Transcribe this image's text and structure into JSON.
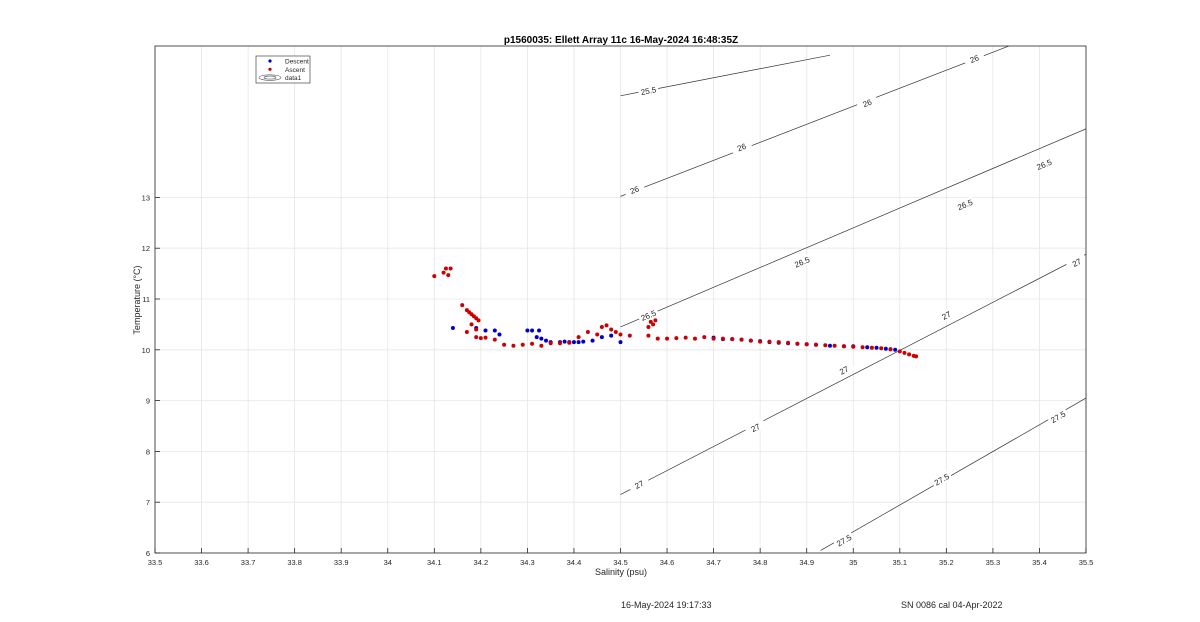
{
  "footer": {
    "timestamp": "16-May-2024 19:17:33",
    "calibration": "SN 0086 cal 04-Apr-2022"
  },
  "chart_data": {
    "type": "scatter",
    "title": "p1560035: Ellett Array 11c 16-May-2024 16:48:35Z",
    "xlabel": "Salinity (psu)",
    "ylabel": "Temperature (°C)",
    "xlim": [
      33.5,
      35.5
    ],
    "ylim": [
      6,
      16
    ],
    "xticks": [
      33.5,
      33.6,
      33.7,
      33.8,
      33.9,
      34,
      34.1,
      34.2,
      34.3,
      34.4,
      34.5,
      34.6,
      34.7,
      34.8,
      34.9,
      35,
      35.1,
      35.2,
      35.3,
      35.4,
      35.5
    ],
    "xtick_labels": [
      "33.5",
      "33.6",
      "33.7",
      "33.8",
      "33.9",
      "34",
      "34.1",
      "34.2",
      "34.3",
      "34.4",
      "34.5",
      "34.6",
      "34.7",
      "34.8",
      "34.9",
      "35",
      "35.1",
      "35.2",
      "35.3",
      "35.4",
      "35.5"
    ],
    "yticks": [
      6,
      7,
      8,
      9,
      10,
      11,
      12,
      13
    ],
    "ytick_labels": [
      "6",
      "7",
      "8",
      "9",
      "10",
      "11",
      "12",
      "13"
    ],
    "grid": true,
    "legend_position": "top-left",
    "legend": [
      {
        "label": "Descent",
        "marker": "dot",
        "color": "#0000cc"
      },
      {
        "label": "Ascent",
        "marker": "dot",
        "color": "#cc0000"
      },
      {
        "label": "data1",
        "marker": "contour",
        "color": "#555555"
      }
    ],
    "series": [
      {
        "name": "Descent",
        "color": "#0000cc",
        "points": [
          [
            34.14,
            10.43
          ],
          [
            34.19,
            10.43
          ],
          [
            34.21,
            10.38
          ],
          [
            34.23,
            10.38
          ],
          [
            34.24,
            10.3
          ],
          [
            34.3,
            10.38
          ],
          [
            34.31,
            10.38
          ],
          [
            34.32,
            10.25
          ],
          [
            34.325,
            10.38
          ],
          [
            34.33,
            10.22
          ],
          [
            34.34,
            10.18
          ],
          [
            34.35,
            10.15
          ],
          [
            34.37,
            10.15
          ],
          [
            34.38,
            10.16
          ],
          [
            34.39,
            10.15
          ],
          [
            34.4,
            10.15
          ],
          [
            34.41,
            10.15
          ],
          [
            34.42,
            10.16
          ],
          [
            34.44,
            10.18
          ],
          [
            34.46,
            10.25
          ],
          [
            34.48,
            10.28
          ],
          [
            34.5,
            10.15
          ],
          [
            34.7,
            10.24
          ],
          [
            34.72,
            10.21
          ],
          [
            34.74,
            10.21
          ],
          [
            34.76,
            10.2
          ],
          [
            34.78,
            10.18
          ],
          [
            34.8,
            10.17
          ],
          [
            34.82,
            10.15
          ],
          [
            34.84,
            10.14
          ],
          [
            34.86,
            10.13
          ],
          [
            34.88,
            10.12
          ],
          [
            34.9,
            10.11
          ],
          [
            34.92,
            10.1
          ],
          [
            34.95,
            10.08
          ],
          [
            34.98,
            10.07
          ],
          [
            35.0,
            10.07
          ],
          [
            35.03,
            10.05
          ],
          [
            35.05,
            10.04
          ],
          [
            35.07,
            10.02
          ],
          [
            35.08,
            10.01
          ],
          [
            35.09,
            10.0
          ]
        ]
      },
      {
        "name": "Ascent",
        "color": "#cc0000",
        "points": [
          [
            34.1,
            11.45
          ],
          [
            34.12,
            11.52
          ],
          [
            34.125,
            11.6
          ],
          [
            34.13,
            11.47
          ],
          [
            34.135,
            11.6
          ],
          [
            34.16,
            10.88
          ],
          [
            34.17,
            10.78
          ],
          [
            34.175,
            10.74
          ],
          [
            34.18,
            10.7
          ],
          [
            34.185,
            10.66
          ],
          [
            34.19,
            10.62
          ],
          [
            34.195,
            10.58
          ],
          [
            34.18,
            10.5
          ],
          [
            34.19,
            10.4
          ],
          [
            34.17,
            10.35
          ],
          [
            34.19,
            10.25
          ],
          [
            34.2,
            10.23
          ],
          [
            34.21,
            10.24
          ],
          [
            34.23,
            10.2
          ],
          [
            34.25,
            10.1
          ],
          [
            34.27,
            10.08
          ],
          [
            34.29,
            10.1
          ],
          [
            34.31,
            10.12
          ],
          [
            34.33,
            10.08
          ],
          [
            34.35,
            10.13
          ],
          [
            34.37,
            10.13
          ],
          [
            34.39,
            10.14
          ],
          [
            34.41,
            10.25
          ],
          [
            34.43,
            10.35
          ],
          [
            34.45,
            10.3
          ],
          [
            34.46,
            10.45
          ],
          [
            34.47,
            10.48
          ],
          [
            34.48,
            10.4
          ],
          [
            34.49,
            10.35
          ],
          [
            34.5,
            10.3
          ],
          [
            34.52,
            10.28
          ],
          [
            34.56,
            10.45
          ],
          [
            34.565,
            10.55
          ],
          [
            34.57,
            10.5
          ],
          [
            34.575,
            10.58
          ],
          [
            34.56,
            10.28
          ],
          [
            34.58,
            10.22
          ],
          [
            34.6,
            10.22
          ],
          [
            34.62,
            10.23
          ],
          [
            34.64,
            10.24
          ],
          [
            34.66,
            10.22
          ],
          [
            34.68,
            10.25
          ],
          [
            34.7,
            10.22
          ],
          [
            34.72,
            10.22
          ],
          [
            34.74,
            10.21
          ],
          [
            34.76,
            10.2
          ],
          [
            34.78,
            10.18
          ],
          [
            34.8,
            10.16
          ],
          [
            34.82,
            10.16
          ],
          [
            34.84,
            10.15
          ],
          [
            34.86,
            10.14
          ],
          [
            34.88,
            10.12
          ],
          [
            34.9,
            10.11
          ],
          [
            34.92,
            10.1
          ],
          [
            34.94,
            10.09
          ],
          [
            34.96,
            10.08
          ],
          [
            34.98,
            10.07
          ],
          [
            35.0,
            10.06
          ],
          [
            35.02,
            10.05
          ],
          [
            35.04,
            10.04
          ],
          [
            35.06,
            10.03
          ],
          [
            35.08,
            10.01
          ],
          [
            35.1,
            9.97
          ],
          [
            35.11,
            9.94
          ],
          [
            35.12,
            9.91
          ],
          [
            35.13,
            9.88
          ],
          [
            35.135,
            9.87
          ]
        ]
      }
    ],
    "contours": [
      {
        "label": "25.5",
        "segments": [
          [
            34.5,
            15.0
          ],
          [
            34.95,
            15.8
          ]
        ],
        "label_points": [
          [
            34.56,
            15.1
          ]
        ]
      },
      {
        "label": "26",
        "segments": [
          [
            34.5,
            13.02
          ],
          [
            35.34,
            16.0
          ]
        ],
        "label_points": [
          [
            34.53,
            13.15
          ],
          [
            34.76,
            13.99
          ],
          [
            35.03,
            14.86
          ],
          [
            35.26,
            15.73
          ]
        ]
      },
      {
        "label": "26.5",
        "segments": [
          [
            34.5,
            10.45
          ],
          [
            35.5,
            14.35
          ]
        ],
        "label_points": [
          [
            34.56,
            10.68
          ],
          [
            34.89,
            11.73
          ],
          [
            35.24,
            12.86
          ],
          [
            35.41,
            13.65
          ]
        ]
      },
      {
        "label": "27",
        "segments": [
          [
            34.5,
            7.15
          ],
          [
            35.5,
            11.88
          ]
        ],
        "label_points": [
          [
            34.54,
            7.35
          ],
          [
            34.79,
            8.47
          ],
          [
            34.98,
            9.6
          ],
          [
            35.2,
            10.68
          ],
          [
            35.48,
            11.72
          ]
        ]
      },
      {
        "label": "27.5",
        "segments": [
          [
            34.93,
            6.05
          ],
          [
            35.5,
            9.05
          ]
        ],
        "label_points": [
          [
            34.98,
            6.25
          ],
          [
            35.19,
            7.45
          ],
          [
            35.44,
            8.68
          ]
        ]
      }
    ]
  }
}
